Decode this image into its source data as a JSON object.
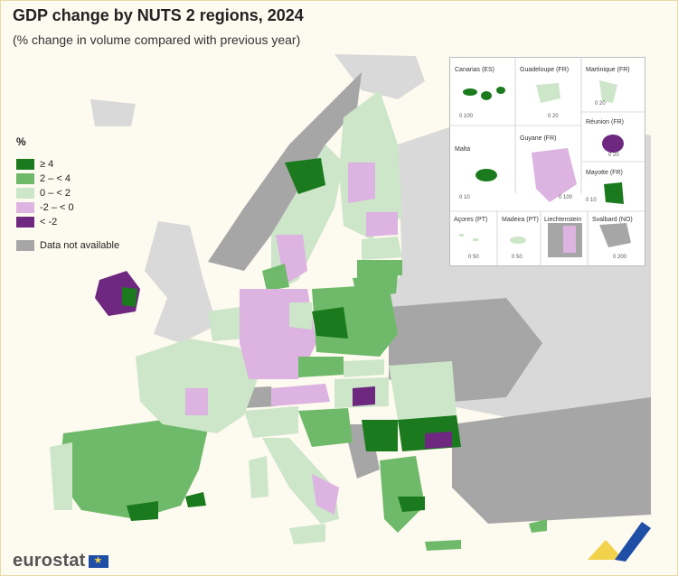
{
  "title": "GDP change by NUTS 2 regions, 2024",
  "subtitle": "(% change in volume compared with previous year)",
  "legend": {
    "title": "%",
    "items": [
      {
        "label": "≥ 4",
        "color": "#1a7a1d"
      },
      {
        "label": "2 – < 4",
        "color": "#6fba6a"
      },
      {
        "label": "0 – < 2",
        "color": "#cde6c9"
      },
      {
        "label": "-2 – < 0",
        "color": "#dcb3e1"
      },
      {
        "label": "< -2",
        "color": "#6e2880"
      }
    ],
    "na_label": "Data not available",
    "na_color": "#a6a6a6"
  },
  "insets": [
    {
      "name": "Canarias (ES)",
      "scale": "0 100"
    },
    {
      "name": "Guadeloupe (FR)",
      "scale": "0 20"
    },
    {
      "name": "Martinique (FR)",
      "scale": "0 20"
    },
    {
      "name": "Réunion (FR)",
      "scale": "0 20"
    },
    {
      "name": "Malta",
      "scale": "0 10"
    },
    {
      "name": "Guyane (FR)",
      "scale": "0 100"
    },
    {
      "name": "Mayotte (FR)",
      "scale": "0 10"
    },
    {
      "name": "Açores (PT)",
      "scale": "0 50"
    },
    {
      "name": "Madeira (PT)",
      "scale": "0 50"
    },
    {
      "name": "Liechtenstein",
      "scale": ""
    },
    {
      "name": "Svalbard (NO)",
      "scale": "0 200"
    }
  ],
  "logo": "eurostat",
  "colors": {
    "sea": "#fdfaf0",
    "non_eu_land": "#d9d9d9",
    "accent_yellow": "#f2d24b",
    "accent_blue": "#1f4ea6"
  }
}
